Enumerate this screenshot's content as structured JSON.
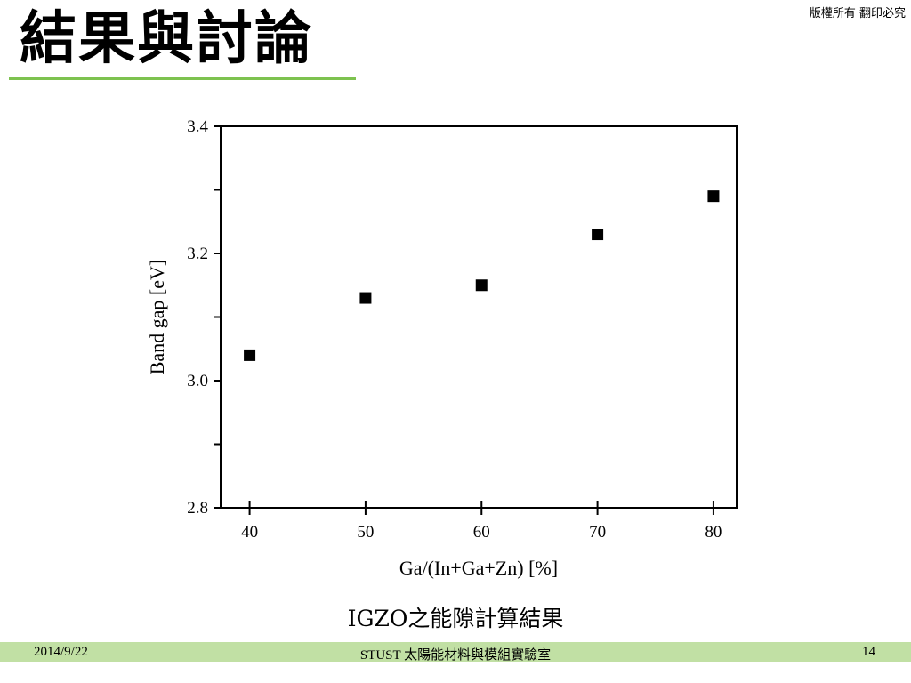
{
  "slide": {
    "title": "結果與討論",
    "copyright": "版權所有 翻印必究",
    "caption": "IGZO之能隙計算結果"
  },
  "footer": {
    "date": "2014/9/22",
    "center": "STUST 太陽能材料與模組實驗室",
    "page": "14"
  },
  "colors": {
    "footer_bar": "#c1e0a4",
    "title_underline": "#7dc24f",
    "marker": "#000000"
  },
  "chart_data": {
    "type": "scatter",
    "title": "",
    "xlabel": "Ga/(In+Ga+Zn) [%]",
    "ylabel": "Band gap [eV]",
    "xlim": [
      37.5,
      82
    ],
    "ylim": [
      2.8,
      3.4
    ],
    "xticks": [
      40,
      50,
      60,
      70,
      80
    ],
    "xtick_labels": [
      "40",
      "50",
      "60",
      "70",
      "80"
    ],
    "yticks": [
      2.8,
      3.0,
      3.2,
      3.4
    ],
    "ytick_labels": [
      "2.8",
      "3.0",
      "3.2",
      "3.4"
    ],
    "yminor_ticks": [
      2.9,
      3.1,
      3.3
    ],
    "grid": false,
    "marker": "square",
    "points": [
      {
        "x": 40,
        "y": 3.04
      },
      {
        "x": 50,
        "y": 3.13
      },
      {
        "x": 60,
        "y": 3.15
      },
      {
        "x": 70,
        "y": 3.23
      },
      {
        "x": 80,
        "y": 3.29
      }
    ]
  }
}
